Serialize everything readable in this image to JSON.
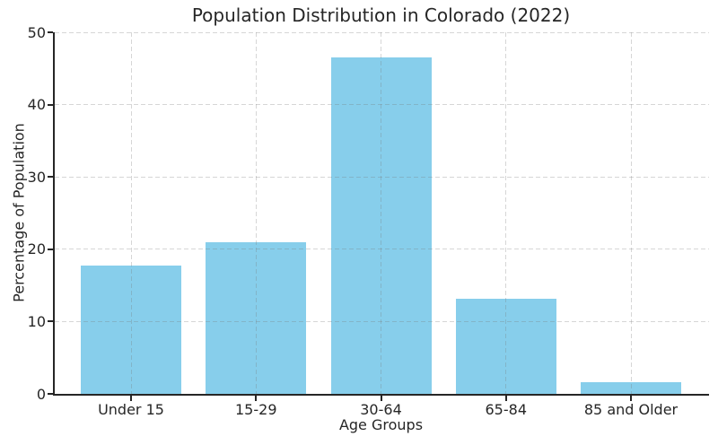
{
  "chart_data": {
    "type": "bar",
    "title": "Population Distribution in Colorado (2022)",
    "xlabel": "Age Groups",
    "ylabel": "Percentage of Population",
    "categories": [
      "Under 15",
      "15-29",
      "30-64",
      "65-84",
      "85 and Older"
    ],
    "values": [
      17.7,
      21.0,
      46.5,
      13.2,
      1.6
    ],
    "ylim": [
      0,
      50
    ],
    "yticks": [
      0,
      10,
      20,
      30,
      40,
      50
    ],
    "bar_color": "#87CEEB",
    "grid": {
      "horizontal": true,
      "vertical": true,
      "style": "dashed",
      "color": "#d9d9d9"
    },
    "legend": "none",
    "background": "#ffffff",
    "axis_color": "#262626"
  }
}
